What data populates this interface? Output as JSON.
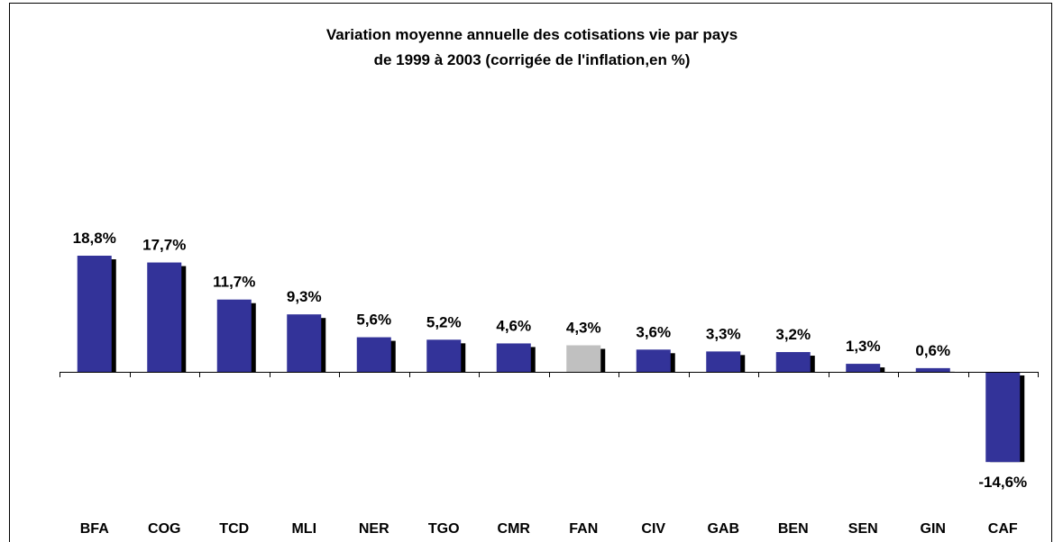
{
  "chart_data": {
    "type": "bar",
    "title": [
      "Variation moyenne annuelle des cotisations vie par pays",
      "de 1999 à 2003 (corrigée de l'inflation,en %)"
    ],
    "categories": [
      "BFA",
      "COG",
      "TCD",
      "MLI",
      "NER",
      "TGO",
      "CMR",
      "FAN",
      "CIV",
      "GAB",
      "BEN",
      "SEN",
      "GIN",
      "CAF"
    ],
    "values": [
      18.8,
      17.7,
      11.7,
      9.3,
      5.6,
      5.2,
      4.6,
      4.3,
      3.6,
      3.3,
      3.2,
      1.3,
      0.6,
      -14.6
    ],
    "value_labels": [
      "18,8%",
      "17,7%",
      "11,7%",
      "9,3%",
      "5,6%",
      "5,2%",
      "4,6%",
      "4,3%",
      "3,6%",
      "3,3%",
      "3,2%",
      "1,3%",
      "0,6%",
      "-14,6%"
    ],
    "colors": [
      "#333399",
      "#333399",
      "#333399",
      "#333399",
      "#333399",
      "#333399",
      "#333399",
      "#c0c0c0",
      "#333399",
      "#333399",
      "#333399",
      "#333399",
      "#333399",
      "#333399"
    ]
  }
}
